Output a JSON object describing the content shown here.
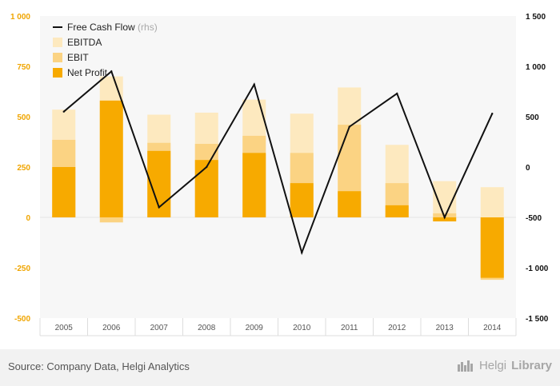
{
  "chart_data": {
    "type": "bar",
    "categories": [
      "2005",
      "2006",
      "2007",
      "2008",
      "2009",
      "2010",
      "2011",
      "2012",
      "2013",
      "2014"
    ],
    "series": [
      {
        "name": "EBITDA",
        "values": [
          535,
          700,
          510,
          520,
          585,
          515,
          645,
          360,
          180,
          150
        ],
        "color": "#fde9bf"
      },
      {
        "name": "EBIT",
        "values": [
          385,
          -25,
          370,
          365,
          405,
          320,
          460,
          170,
          20,
          -310
        ],
        "color": "#fbd383"
      },
      {
        "name": "Net Profit",
        "values": [
          250,
          580,
          330,
          285,
          320,
          170,
          130,
          60,
          -20,
          -300
        ],
        "color": "#f7aa00"
      },
      {
        "name": "Free Cash Flow",
        "axis": "right",
        "type": "line",
        "values": [
          550,
          950,
          -400,
          0,
          820,
          -850,
          400,
          730,
          -500,
          530
        ],
        "color": "#111111"
      }
    ],
    "legend_suffix": "(rhs)",
    "left_axis": {
      "ticks": [
        "1 000",
        "750",
        "500",
        "250",
        "0",
        "-250",
        "-500"
      ],
      "ylim": [
        -500,
        1000
      ]
    },
    "right_axis": {
      "ticks": [
        "1 500",
        "1 000",
        "500",
        "0",
        "-500",
        "-1 000",
        "-1 500"
      ],
      "ylim": [
        -1500,
        1500
      ]
    },
    "legend_position": "top-left",
    "grid": false
  },
  "footer": {
    "source": "Source: Company Data, Helgi Analytics",
    "brand_light": "Helgi",
    "brand_bold": "Library"
  },
  "colors": {
    "left_axis_labels": "#f0a500",
    "right_axis_labels": "#111111",
    "plot_background": "#f7f7f7"
  }
}
